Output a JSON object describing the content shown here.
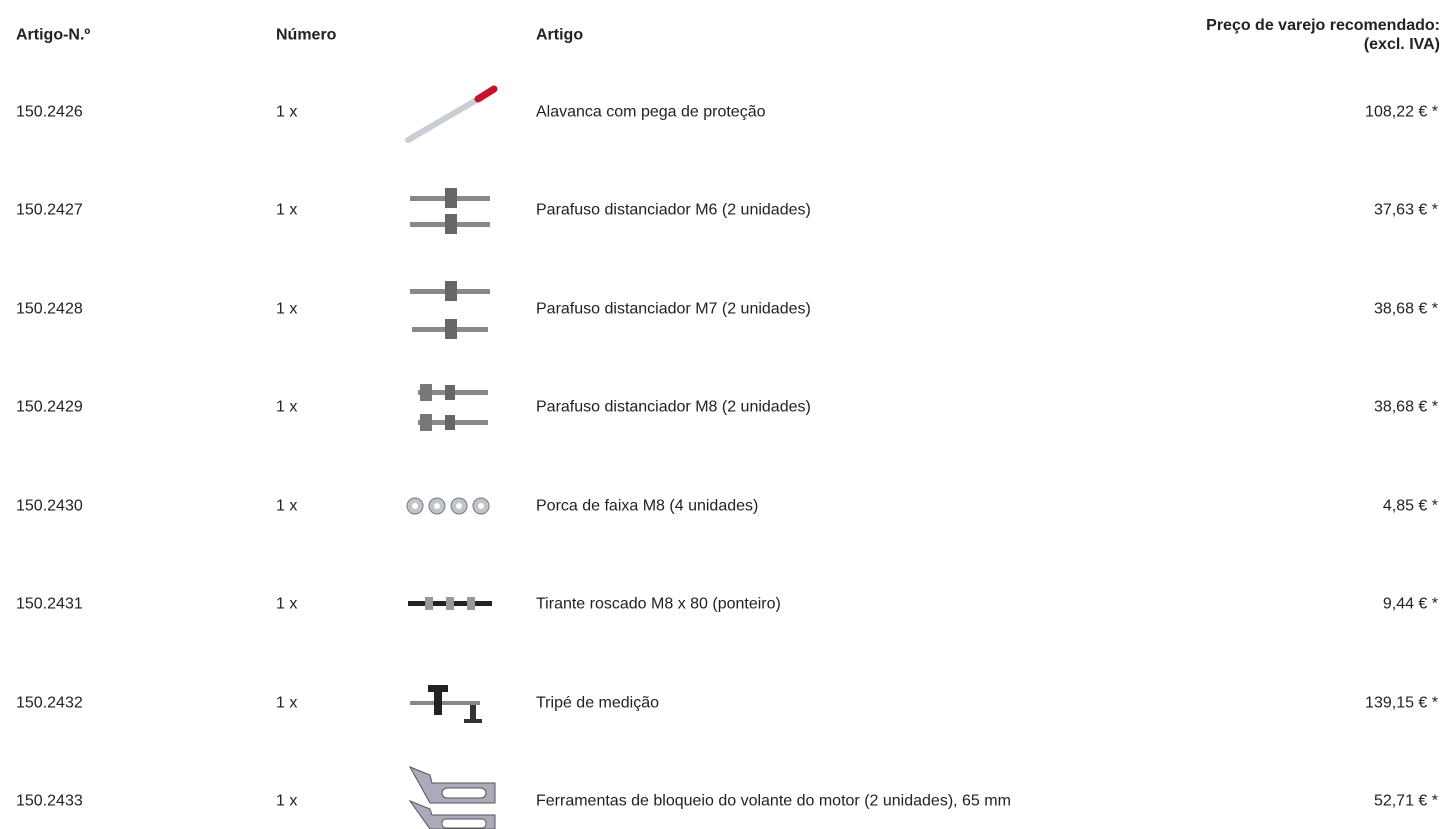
{
  "table": {
    "headers": [
      "Artigo-N.º",
      "Número",
      "Artigo"
    ],
    "price_header": [
      "Preço de varejo recomendado:",
      "(excl. IVA)"
    ],
    "rows": [
      [
        "150.2426",
        "1 x",
        "Alavanca com pega de proteção",
        "108,22 € *"
      ],
      [
        "150.2427",
        "1 x",
        "Parafuso distanciador M6 (2 unidades)",
        "37,63 € *"
      ],
      [
        "150.2428",
        "1 x",
        "Parafuso distanciador M7 (2 unidades)",
        "38,68 € *"
      ],
      [
        "150.2429",
        "1 x",
        "Parafuso distanciador M8 (2 unidades)",
        "38,68 € *"
      ],
      [
        "150.2430",
        "1 x",
        "Porca de faixa M8 (4 unidades)",
        "4,85 € *"
      ],
      [
        "150.2431",
        "1 x",
        "Tirante roscado M8 x 80 (ponteiro)",
        "9,44 € *"
      ],
      [
        "150.2432",
        "1 x",
        "Tripé de medição",
        "139,15 € *"
      ],
      [
        "150.2433",
        "1 x",
        "Ferramentas de bloqueio do volante do motor (2 unidades), 65 mm",
        "52,71 € *"
      ]
    ]
  }
}
